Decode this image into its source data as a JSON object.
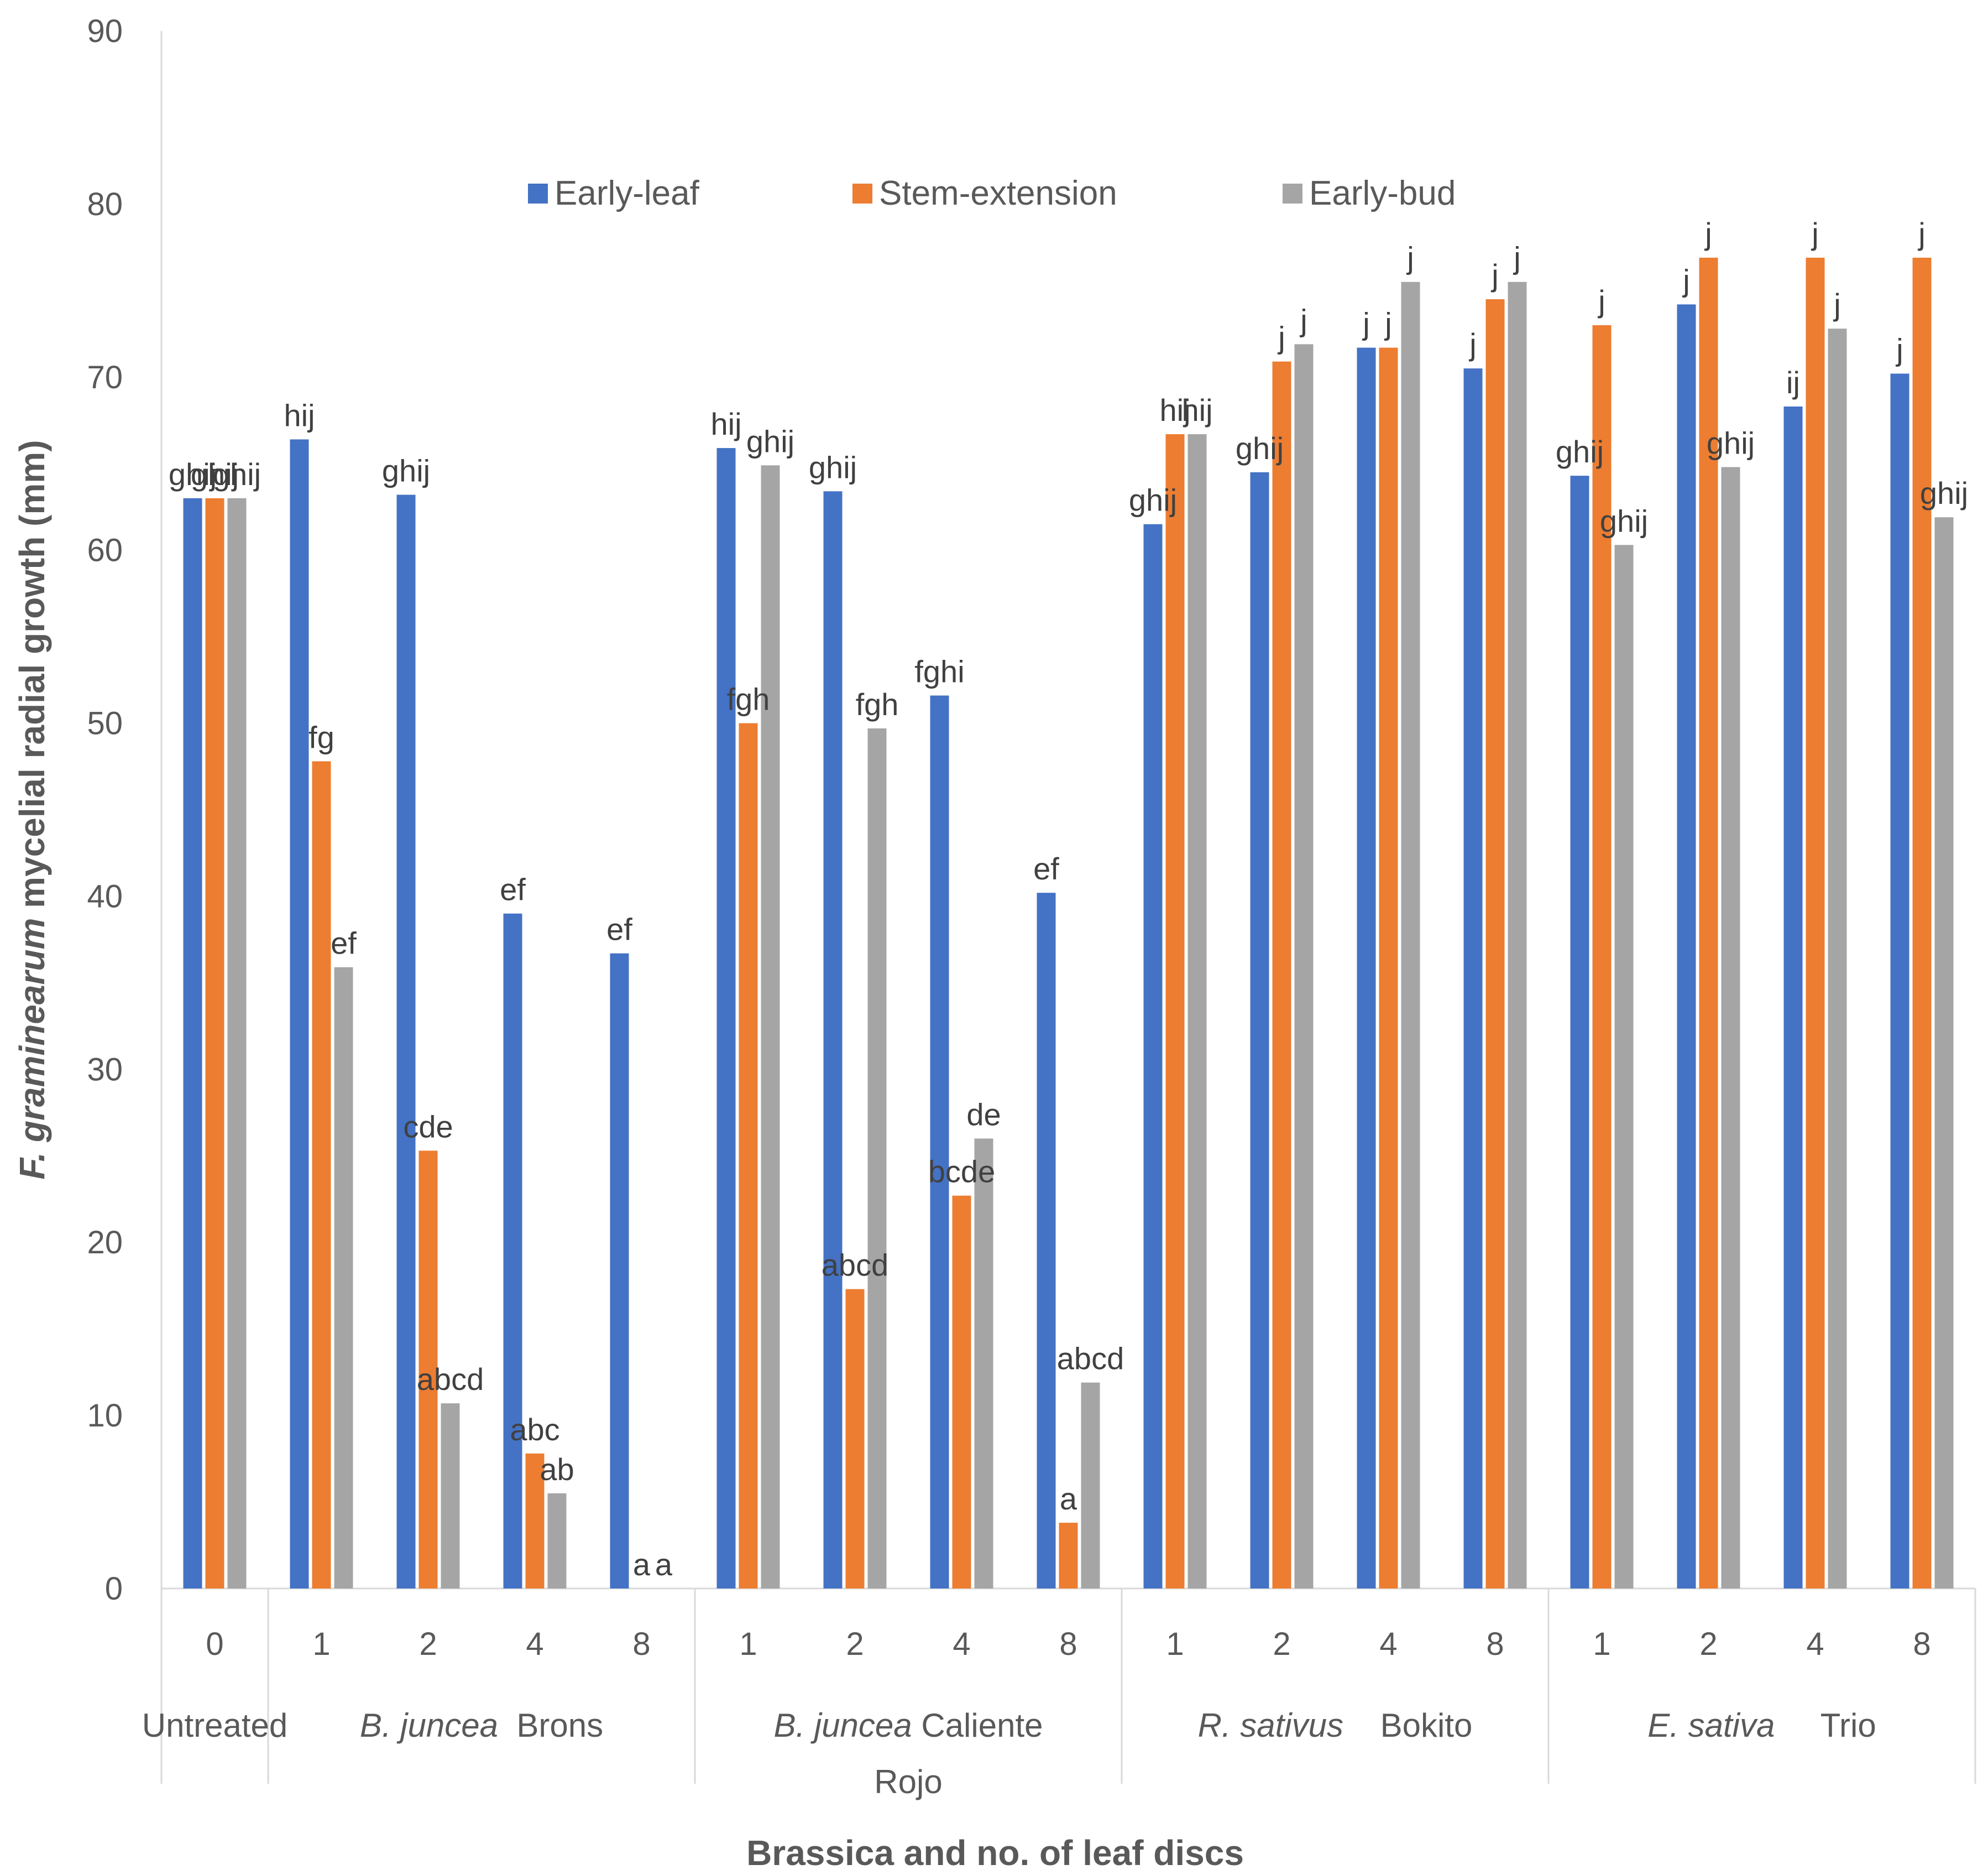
{
  "chart_data": {
    "type": "bar",
    "title": "",
    "xlabel": "Brassica and no. of leaf discs",
    "ylabel": {
      "italic": "F. graminearum",
      "rest": " mycelial radial growth (mm)"
    },
    "ylim": [
      0,
      90
    ],
    "yticks": [
      0,
      10,
      20,
      30,
      40,
      50,
      60,
      70,
      80,
      90
    ],
    "grid": false,
    "legend_position": "top-center",
    "colors": {
      "Early-leaf": "#4472C4",
      "Stem-extension": "#ED7D31",
      "Early-bud": "#A5A5A5"
    },
    "series_names": [
      "Early-leaf",
      "Stem-extension",
      "Early-bud"
    ],
    "groups": [
      {
        "label_parts": [
          {
            "text": "Untreated",
            "italic": false
          }
        ],
        "categories": [
          "0"
        ]
      },
      {
        "label_parts": [
          {
            "text": "B. juncea",
            "italic": true
          },
          {
            "text": "  Brons",
            "italic": false
          }
        ],
        "categories": [
          "1",
          "2",
          "4",
          "8"
        ]
      },
      {
        "label_parts": [
          {
            "text": "B. juncea",
            "italic": true
          },
          {
            "text": " Caliente",
            "italic": false
          }
        ],
        "label_line2": "Rojo",
        "categories": [
          "1",
          "2",
          "4",
          "8"
        ]
      },
      {
        "label_parts": [
          {
            "text": "R. sativus",
            "italic": true
          },
          {
            "text": "    Bokito",
            "italic": false
          }
        ],
        "categories": [
          "1",
          "2",
          "4",
          "8"
        ]
      },
      {
        "label_parts": [
          {
            "text": "E. sativa",
            "italic": true
          },
          {
            "text": "     Trio",
            "italic": false
          }
        ],
        "categories": [
          "1",
          "2",
          "4",
          "8"
        ]
      }
    ],
    "categories": [
      "0",
      "1",
      "2",
      "4",
      "8",
      "1",
      "2",
      "4",
      "8",
      "1",
      "2",
      "4",
      "8",
      "1",
      "2",
      "4",
      "8"
    ],
    "series": [
      {
        "name": "Early-leaf",
        "values": [
          63,
          66.4,
          63.2,
          39,
          36.7,
          65.9,
          63.4,
          51.6,
          40.2,
          61.5,
          64.5,
          71.7,
          70.5,
          64.3,
          74.2,
          68.3,
          70.2
        ],
        "labels": [
          "ghij",
          "hij",
          "ghij",
          "ef",
          "ef",
          "hij",
          "ghij",
          "fghi",
          "ef",
          "ghij",
          "ghij",
          "j",
          "j",
          "ghij",
          "j",
          "ij",
          "j"
        ]
      },
      {
        "name": "Stem-extension",
        "values": [
          63,
          47.8,
          25.3,
          7.8,
          0,
          50,
          17.3,
          22.7,
          3.8,
          66.7,
          70.9,
          71.7,
          74.5,
          73,
          76.9,
          76.9,
          76.9
        ],
        "labels": [
          "ghij",
          "fg",
          "cde",
          "abc",
          "a",
          "fgh",
          "abcd",
          "bcde",
          "a",
          "hij",
          "j",
          "j",
          "j",
          "j",
          "j",
          "j",
          "j"
        ]
      },
      {
        "name": "Early-bud",
        "values": [
          63,
          35.9,
          10.7,
          5.5,
          0,
          64.9,
          49.7,
          26,
          11.9,
          66.7,
          71.9,
          75.5,
          75.5,
          60.3,
          64.8,
          72.8,
          61.9
        ],
        "labels": [
          "ghij",
          "ef",
          "abcd",
          "ab",
          "a",
          "ghij",
          "fgh",
          "de",
          "abcd",
          "hij",
          "j",
          "j",
          "j",
          "ghij",
          "ghij",
          "j",
          "ghij"
        ]
      }
    ]
  }
}
